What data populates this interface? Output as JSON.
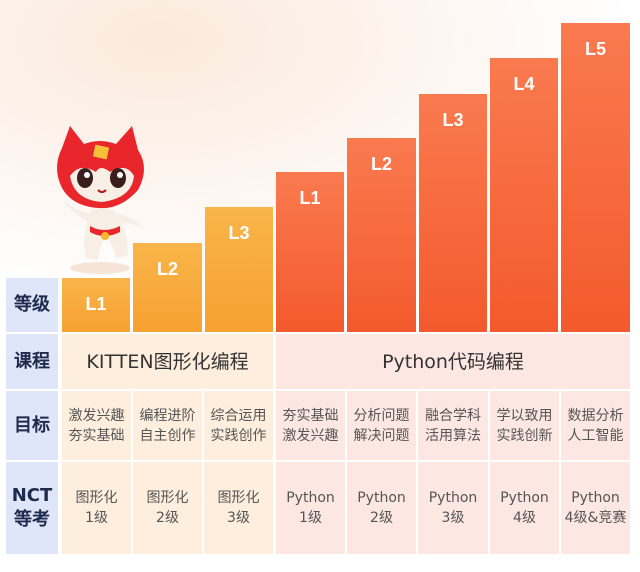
{
  "level_header": "等级",
  "course_header": "课程",
  "goal_header": "目标",
  "nct_header_line1": "NCT",
  "nct_header_line2": "等考",
  "bars": [
    {
      "label": "L1",
      "track": "kitten"
    },
    {
      "label": "L2",
      "track": "kitten"
    },
    {
      "label": "L3",
      "track": "kitten"
    },
    {
      "label": "L1",
      "track": "python"
    },
    {
      "label": "L2",
      "track": "python"
    },
    {
      "label": "L3",
      "track": "python"
    },
    {
      "label": "L4",
      "track": "python"
    },
    {
      "label": "L5",
      "track": "python"
    }
  ],
  "courses": {
    "kitten": "KITTEN图形化编程",
    "python": "Python代码编程"
  },
  "goals": [
    {
      "l1": "激发兴趣",
      "l2": "夯实基础"
    },
    {
      "l1": "编程进阶",
      "l2": "自主创作"
    },
    {
      "l1": "综合运用",
      "l2": "实践创作"
    },
    {
      "l1": "夯实基础",
      "l2": "激发兴趣"
    },
    {
      "l1": "分析问题",
      "l2": "解决问题"
    },
    {
      "l1": "融合学科",
      "l2": "活用算法"
    },
    {
      "l1": "学以致用",
      "l2": "实践创新"
    },
    {
      "l1": "数据分析",
      "l2": "人工智能"
    }
  ],
  "nct": [
    {
      "l1": "图形化",
      "l2": "1级"
    },
    {
      "l1": "图形化",
      "l2": "2级"
    },
    {
      "l1": "图形化",
      "l2": "3级"
    },
    {
      "l1": "Python",
      "l2": "1级"
    },
    {
      "l1": "Python",
      "l2": "2级"
    },
    {
      "l1": "Python",
      "l2": "3级"
    },
    {
      "l1": "Python",
      "l2": "4级"
    },
    {
      "l1": "Python",
      "l2": "4级&竞赛"
    }
  ],
  "colors": {
    "kitten_bar": "#f7a131",
    "python_bar": "#f35a2d",
    "header_bg": "#dfe6f9",
    "kitten_row_bg": "#fdeedd",
    "python_row_bg": "#fde7e3"
  }
}
